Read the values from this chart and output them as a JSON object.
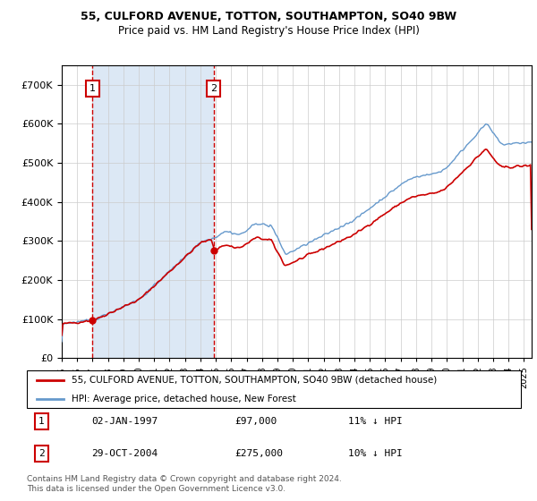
{
  "title1": "55, CULFORD AVENUE, TOTTON, SOUTHAMPTON, SO40 9BW",
  "title2": "Price paid vs. HM Land Registry's House Price Index (HPI)",
  "legend1": "55, CULFORD AVENUE, TOTTON, SOUTHAMPTON, SO40 9BW (detached house)",
  "legend2": "HPI: Average price, detached house, New Forest",
  "annotation1_date": "02-JAN-1997",
  "annotation1_price": "£97,000",
  "annotation1_hpi": "11% ↓ HPI",
  "annotation2_date": "29-OCT-2004",
  "annotation2_price": "£275,000",
  "annotation2_hpi": "10% ↓ HPI",
  "footnote1": "Contains HM Land Registry data © Crown copyright and database right 2024.",
  "footnote2": "This data is licensed under the Open Government Licence v3.0.",
  "purchase1_year": 1997.01,
  "purchase1_value": 97000,
  "purchase2_year": 2004.83,
  "purchase2_value": 275000,
  "plot_bg": "#ffffff",
  "shaded_region_color": "#dce8f5",
  "red_color": "#cc0000",
  "blue_color": "#6699cc",
  "grid_color": "#cccccc",
  "ylim_max": 750000,
  "ylim_min": 0
}
